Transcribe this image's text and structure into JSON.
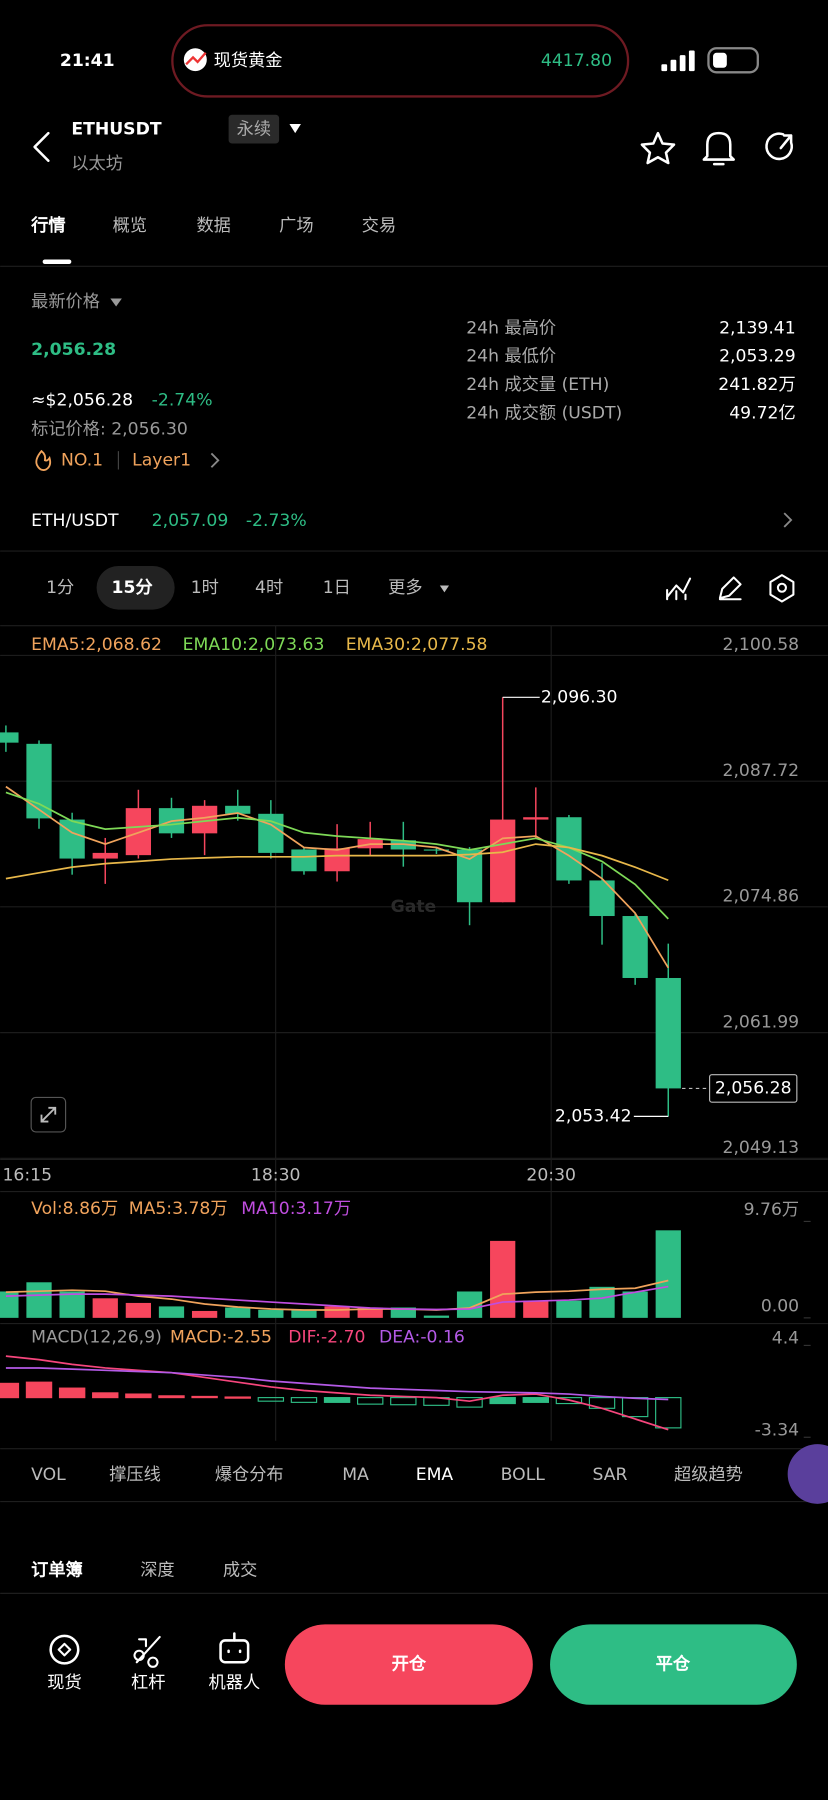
{
  "status": {
    "time": "21:41",
    "ticker_name": "现货黄金",
    "ticker_price": "4417.80"
  },
  "header": {
    "symbol": "ETHUSDT",
    "tag": "永续",
    "subtitle": "以太坊"
  },
  "tabs": [
    "行情",
    "概览",
    "数据",
    "广场",
    "交易"
  ],
  "price": {
    "label": "最新价格",
    "last": "2,056.28",
    "usd": "≈$2,056.28",
    "change": "-2.74%",
    "mark": "标记价格: 2,056.30",
    "rank": "NO.1",
    "sector": "Layer1"
  },
  "stats": [
    {
      "label": "24h 最高价",
      "value": "2,139.41"
    },
    {
      "label": "24h 最低价",
      "value": "2,053.29"
    },
    {
      "label": "24h 成交量 (ETH)",
      "value": "241.82万"
    },
    {
      "label": "24h 成交额 (USDT)",
      "value": "49.72亿"
    }
  ],
  "spot": {
    "pair": "ETH/USDT",
    "price": "2,057.09",
    "change": "-2.73%"
  },
  "intervals": [
    "1分",
    "15分",
    "1时",
    "4时",
    "1日",
    "更多"
  ],
  "chart_data": [
    {
      "type": "candlestick",
      "open": [
        2092.71,
        2091.54,
        2083.79,
        2079.8,
        2080.15,
        2084.96,
        2082.38,
        2085.2,
        2084.38,
        2080.73,
        2078.5,
        2080.85,
        2081.67,
        2080.73,
        2080.73,
        2075.33,
        2083.79,
        2084.03,
        2077.56,
        2073.92,
        2067.58
      ],
      "high": [
        2093.42,
        2091.89,
        2084.49,
        2081.91,
        2086.84,
        2086.02,
        2085.78,
        2086.84,
        2085.78,
        2080.97,
        2083.32,
        2083.56,
        2083.56,
        2080.97,
        2080.97,
        2096.3,
        2087.08,
        2084.26,
        2079.33,
        2074.28,
        2071.1
      ],
      "low": [
        2090.72,
        2082.85,
        2078.15,
        2077.21,
        2079.8,
        2081.91,
        2080.15,
        2083.68,
        2079.8,
        2078.15,
        2077.45,
        2080.15,
        2078.97,
        2080.27,
        2072.98,
        2075.33,
        2081.91,
        2077.21,
        2070.99,
        2066.88,
        2053.42
      ],
      "close": [
        2091.66,
        2083.91,
        2079.8,
        2080.38,
        2084.96,
        2082.38,
        2085.2,
        2084.38,
        2080.38,
        2078.5,
        2080.85,
        2081.79,
        2080.73,
        2080.62,
        2075.33,
        2083.79,
        2084.03,
        2077.56,
        2073.92,
        2067.58,
        2056.28
      ],
      "up_color": "#f6465d",
      "down_color": "#2ebd85",
      "series": [
        {
          "name": "EMA5:2,068.62",
          "color": "#f0a35c",
          "values": [
            2087.16,
            2084.81,
            2082.45,
            2081.28,
            2082.45,
            2083.63,
            2083.98,
            2084.46,
            2083.28,
            2080.93,
            2080.69,
            2081.28,
            2081.28,
            2080.93,
            2079.75,
            2081.87,
            2082.1,
            2080.1,
            2077.75,
            2074.21,
            2068.62
          ]
        },
        {
          "name": "EMA10:2,073.63",
          "color": "#7ed957",
          "values": [
            2086.57,
            2085.4,
            2083.63,
            2082.81,
            2083.04,
            2083.28,
            2083.63,
            2083.98,
            2083.63,
            2082.45,
            2082.1,
            2081.87,
            2081.63,
            2081.28,
            2080.69,
            2081.28,
            2081.87,
            2080.93,
            2079.51,
            2077.16,
            2073.63
          ]
        },
        {
          "name": "EMA30:2,077.58",
          "color": "#e8b84a",
          "values": [
            2077.75,
            2078.34,
            2078.92,
            2079.28,
            2079.51,
            2079.75,
            2079.87,
            2079.98,
            2079.98,
            2079.98,
            2080.1,
            2080.1,
            2080.1,
            2080.1,
            2080.22,
            2080.45,
            2081.28,
            2080.93,
            2080.1,
            2078.92,
            2077.58
          ]
        }
      ],
      "ylim": [
        2049.13,
        2100.58
      ],
      "yticks": [
        {
          "value": 2100.58,
          "label": "2,100.58"
        },
        {
          "value": 2087.72,
          "label": "2,087.72"
        },
        {
          "value": 2074.86,
          "label": "2,074.86"
        },
        {
          "value": 2061.99,
          "label": "2,061.99"
        },
        {
          "value": 2049.13,
          "label": "2,049.13"
        }
      ],
      "x_labels": [
        "16:15",
        "18:30",
        "20:30"
      ],
      "annotations": {
        "high": "2,096.30",
        "low": "2,053.42",
        "last": "2,056.28"
      },
      "watermark": "Gate"
    },
    {
      "type": "volume",
      "label": "Vol:8.86万",
      "label_color": "#f0a35c",
      "values": [
        2.67,
        3.6,
        2.67,
        1.98,
        1.51,
        1.16,
        0.7,
        1.05,
        0.81,
        0.81,
        1.16,
        1.05,
        1.05,
        0.23,
        2.67,
        7.79,
        1.74,
        1.74,
        3.14,
        2.67,
        8.86
      ],
      "series": [
        {
          "name": "MA5:3.78万",
          "color": "#f0a35c",
          "values": [
            2.6,
            2.7,
            2.8,
            2.7,
            2.2,
            1.9,
            1.4,
            1.1,
            0.9,
            0.8,
            0.8,
            0.9,
            0.9,
            0.8,
            1.0,
            2.4,
            2.6,
            2.7,
            2.9,
            3.0,
            3.78
          ]
        },
        {
          "name": "MA10:3.17万",
          "color": "#c04ee0",
          "values": [
            2.2,
            2.3,
            2.4,
            2.4,
            2.3,
            2.2,
            2.0,
            1.8,
            1.6,
            1.4,
            1.2,
            1.0,
            0.9,
            0.85,
            0.9,
            1.6,
            1.7,
            1.8,
            2.0,
            2.6,
            3.17
          ]
        }
      ],
      "ylim": [
        0,
        9.76
      ],
      "yticks": [
        {
          "value": 9.76,
          "label": "9.76万"
        },
        {
          "value": 0,
          "label": "0.00"
        }
      ]
    },
    {
      "type": "macd",
      "label": "MACD(12,26,9)",
      "value_name": "MACD:-2.55",
      "value_color": "#f0a35c",
      "values": [
        1.2,
        1.3,
        0.8,
        0.4,
        0.3,
        0.15,
        0.1,
        0.05,
        -0.3,
        -0.4,
        -0.4,
        -0.55,
        -0.6,
        -0.65,
        -0.8,
        -0.5,
        -0.4,
        -0.5,
        -0.9,
        -1.6,
        -2.55
      ],
      "series": [
        {
          "name": "DIF:-2.70",
          "color": "#f6467d",
          "values": [
            3.5,
            3.2,
            2.8,
            2.5,
            2.3,
            2.1,
            1.7,
            1.3,
            0.9,
            0.6,
            0.4,
            0.2,
            0.1,
            0.0,
            -0.3,
            0.2,
            0.3,
            -0.2,
            -0.9,
            -1.8,
            -2.7
          ]
        },
        {
          "name": "DEA:-0.16",
          "color": "#b45ae6",
          "values": [
            2.5,
            2.5,
            2.4,
            2.3,
            2.2,
            2.1,
            1.9,
            1.7,
            1.4,
            1.2,
            1.0,
            0.8,
            0.7,
            0.6,
            0.5,
            0.45,
            0.4,
            0.3,
            0.1,
            -0.05,
            -0.16
          ]
        }
      ],
      "ylim": [
        -3.34,
        4.4
      ],
      "yticks": [
        4.4,
        -3.34
      ]
    }
  ],
  "indicators": [
    "VOL",
    "撑压线",
    "爆仓分布",
    "MA",
    "EMA",
    "BOLL",
    "SAR",
    "超级趋势"
  ],
  "book_tabs": [
    "订单簿",
    "深度",
    "成交"
  ],
  "nav": [
    "现货",
    "杠杆",
    "机器人"
  ],
  "buttons": {
    "open": "开仓",
    "close": "平仓"
  }
}
